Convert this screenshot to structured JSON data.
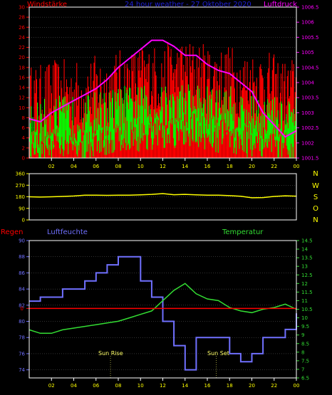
{
  "top": {
    "title": "24 hour weather - 27 Oktober 2020",
    "left_label": "Windstärke",
    "right_label": "Luftdruck",
    "colors": {
      "title": "#1f1fd8",
      "left": "#ff0000",
      "right": "#ff00ff",
      "gust": "#ff0000",
      "wind": "#00ff00",
      "pressure": "#ff00ff",
      "axis": "#ffffff"
    }
  },
  "middle": {
    "directions": [
      "N",
      "W",
      "S",
      "O",
      "N"
    ],
    "colors": {
      "line": "#ffff00",
      "dir": "#ffff00"
    }
  },
  "bottom": {
    "left_label": "Regen",
    "mid_label": "Luftfeuchte",
    "right_label": "Temperatur",
    "sun_rise": "Sun Rise",
    "sun_set": "Sun Set",
    "colors": {
      "rain": "#ff0000",
      "humidity": "#7070ff",
      "temperature": "#33dd33",
      "sun": "#ffff66"
    }
  },
  "chart_data": [
    {
      "type": "bar",
      "name": "wind",
      "title": "24 hour weather - 27 Oktober 2020",
      "xticks": [
        "02",
        "04",
        "06",
        "08",
        "10",
        "12",
        "14",
        "16",
        "18",
        "20",
        "22",
        "00"
      ],
      "ylim": [
        0,
        30
      ],
      "yticks": [
        0,
        2,
        4,
        6,
        8,
        10,
        12,
        14,
        16,
        18,
        20,
        22,
        24,
        26,
        28,
        30
      ],
      "y2lim": [
        1001.5,
        1006.5
      ],
      "y2ticks": [
        "1001.5",
        "1002",
        "1002.5",
        "1003",
        "1003.5",
        "1004",
        "1004.5",
        "1005",
        "1005.5",
        "1006",
        "1006.5"
      ],
      "hours": [
        0,
        1,
        2,
        3,
        4,
        5,
        6,
        7,
        8,
        9,
        10,
        11,
        12,
        13,
        14,
        15,
        16,
        17,
        18,
        19,
        20,
        21,
        22,
        23,
        24
      ],
      "wind_avg": [
        5,
        5,
        6,
        6,
        6,
        6,
        7,
        7,
        8,
        8,
        8,
        8,
        8,
        8,
        9,
        9,
        8,
        8,
        8,
        7,
        7,
        7,
        6,
        5,
        6
      ],
      "wind_gust_avg": [
        11,
        11,
        12,
        12,
        12,
        12,
        13,
        13,
        14,
        14,
        15,
        15,
        15,
        16,
        16,
        16,
        15,
        15,
        15,
        14,
        14,
        14,
        13,
        12,
        13
      ],
      "pressure": [
        1002.8,
        1002.7,
        1003.0,
        1003.2,
        1003.4,
        1003.6,
        1003.8,
        1004.1,
        1004.5,
        1004.8,
        1005.1,
        1005.4,
        1005.4,
        1005.2,
        1004.9,
        1004.9,
        1004.6,
        1004.4,
        1004.3,
        1004.0,
        1003.7,
        1003.0,
        1002.6,
        1002.2,
        1002.4
      ]
    },
    {
      "type": "line",
      "name": "wind direction",
      "yticks": [
        0,
        90,
        180,
        270,
        360
      ],
      "ylim": [
        0,
        360
      ],
      "xticks": [
        "02",
        "04",
        "06",
        "08",
        "10",
        "12",
        "14",
        "16",
        "18",
        "20",
        "22",
        "00"
      ],
      "hours": [
        0,
        1,
        2,
        3,
        4,
        5,
        6,
        7,
        8,
        9,
        10,
        11,
        12,
        13,
        14,
        15,
        16,
        17,
        18,
        19,
        20,
        21,
        22,
        23,
        24
      ],
      "direction": [
        180,
        178,
        180,
        183,
        186,
        192,
        192,
        191,
        192,
        193,
        195,
        199,
        205,
        196,
        199,
        195,
        192,
        193,
        189,
        184,
        172,
        174,
        183,
        188,
        185
      ]
    },
    {
      "type": "line",
      "name": "humidity / temperature / rain",
      "xticks": [
        "02",
        "04",
        "06",
        "08",
        "10",
        "12",
        "14",
        "16",
        "18",
        "20",
        "22",
        "00"
      ],
      "ylim": [
        73,
        90
      ],
      "yticks": [
        74,
        76,
        78,
        80,
        82,
        84,
        86,
        88,
        90
      ],
      "y2lim": [
        6.5,
        14.5
      ],
      "y2ticks": [
        "6.5",
        "7",
        "7.5",
        "8",
        "8.5",
        "9",
        "9.5",
        "10",
        "10.5",
        "11",
        "11.5",
        "12",
        "12.5",
        "13",
        "13.5",
        "14",
        "14.5"
      ],
      "rain_value": 0,
      "hours": [
        0,
        1,
        2,
        3,
        4,
        5,
        6,
        7,
        8,
        9,
        10,
        11,
        12,
        13,
        14,
        15,
        16,
        17,
        18,
        19,
        20,
        21,
        22,
        23,
        24
      ],
      "humidity": [
        82.5,
        83,
        83,
        84,
        84,
        85,
        86,
        87,
        88,
        88,
        85,
        83,
        80,
        77,
        74,
        78,
        78,
        78,
        76,
        75,
        76,
        78,
        78,
        79,
        81
      ],
      "temperature": [
        9.3,
        9.1,
        9.1,
        9.3,
        9.4,
        9.5,
        9.6,
        9.7,
        9.8,
        10.0,
        10.2,
        10.4,
        11.0,
        11.6,
        12.0,
        11.4,
        11.1,
        11.0,
        10.6,
        10.4,
        10.3,
        10.5,
        10.6,
        10.8,
        10.5
      ]
    }
  ]
}
